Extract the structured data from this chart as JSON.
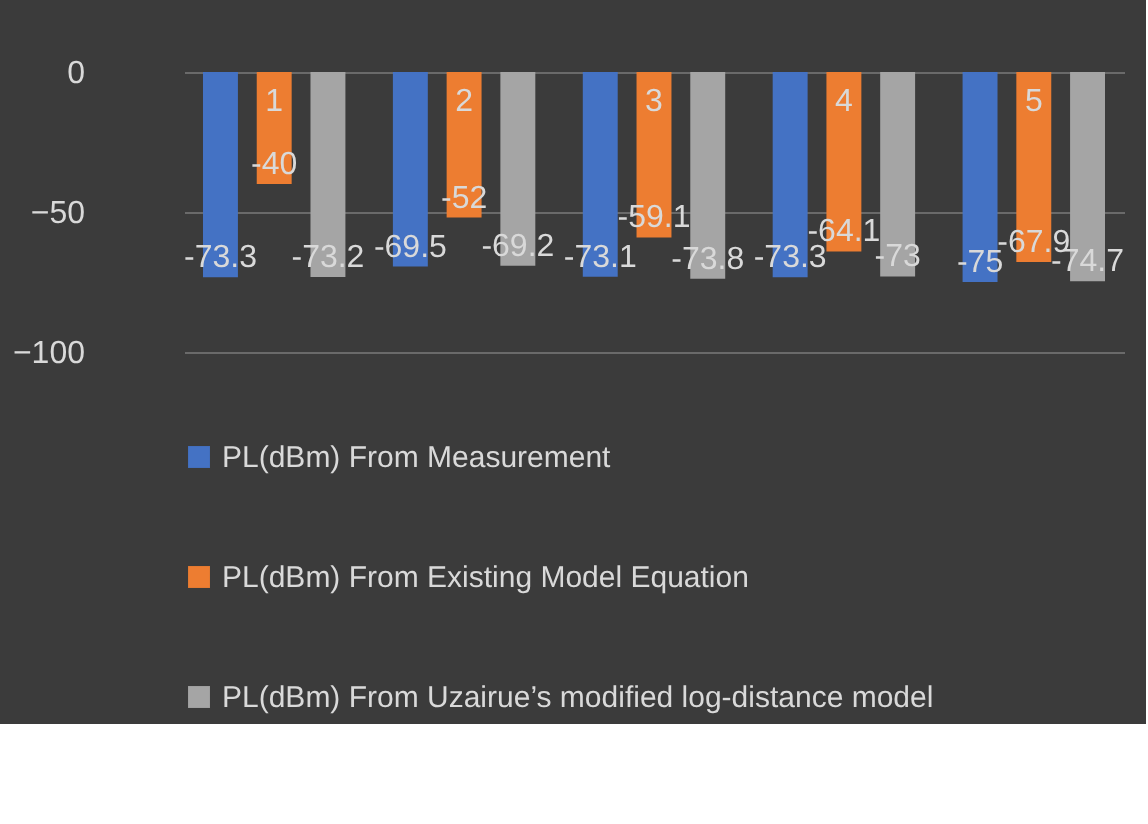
{
  "chart_data": {
    "type": "bar",
    "categories": [
      "1",
      "2",
      "3",
      "4",
      "5"
    ],
    "series": [
      {
        "name": "PL(dBm) From Measurement",
        "color": "#4472c4",
        "values": [
          -73.3,
          -69.5,
          -73.1,
          -73.3,
          -75
        ]
      },
      {
        "name": "PL(dBm) From Existing Model Equation",
        "color": "#ed7d31",
        "values": [
          -40,
          -52,
          -59.1,
          -64.1,
          -67.9
        ]
      },
      {
        "name": "PL(dBm) From Uzairue’s modified log-distance model",
        "color": "#a5a5a5",
        "values": [
          -73.2,
          -69.2,
          -73.8,
          -73,
          -74.7
        ]
      }
    ],
    "ylim": [
      -100,
      0
    ],
    "yticks": [
      -100,
      -50,
      0
    ],
    "grid": "y",
    "legend": "bottom",
    "data_labels": true
  }
}
